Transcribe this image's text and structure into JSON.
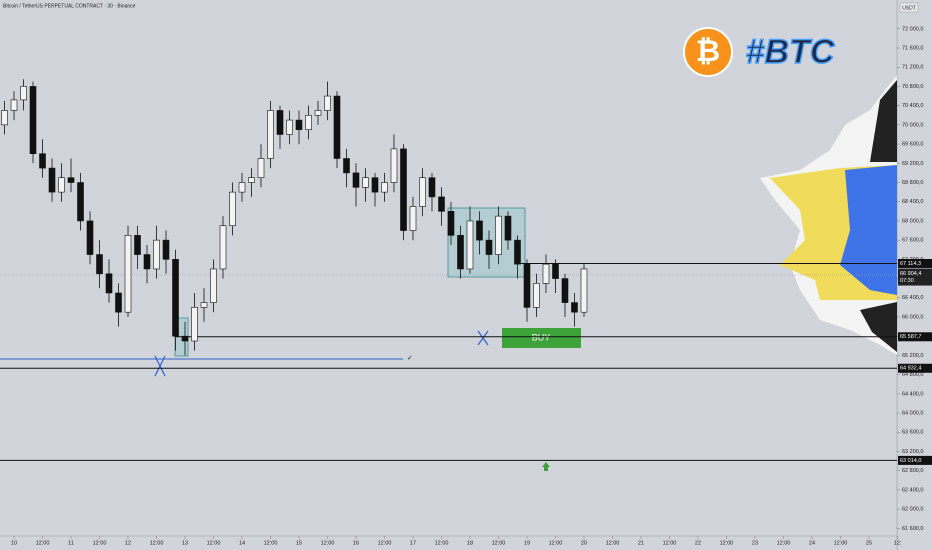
{
  "chart_data": {
    "type": "candlestick",
    "title": "Bitcoin / TetherUS PERPETUAL CONTRACT · 30 · Binance",
    "currency": "USDT",
    "logo_symbol": "₿",
    "logo_text": "#BTC",
    "buy_label": "BUY",
    "check_mark": "✓",
    "xlim": [
      -5.9,
      371.8
    ],
    "ylim": [
      61440,
      72600
    ],
    "xticks": [
      {
        "value": 0,
        "label": "10"
      },
      {
        "value": 12,
        "label": "12:00"
      },
      {
        "value": 24,
        "label": "11"
      },
      {
        "value": 36,
        "label": "12:00"
      },
      {
        "value": 48,
        "label": "12"
      },
      {
        "value": 60,
        "label": "12:00"
      },
      {
        "value": 72,
        "label": "13"
      },
      {
        "value": 84,
        "label": "12:00"
      },
      {
        "value": 96,
        "label": "14"
      },
      {
        "value": 108,
        "label": "12:00"
      },
      {
        "value": 120,
        "label": "15"
      },
      {
        "value": 132,
        "label": "12:00"
      },
      {
        "value": 144,
        "label": "16"
      },
      {
        "value": 156,
        "label": "12:00"
      },
      {
        "value": 168,
        "label": "17"
      },
      {
        "value": 180,
        "label": "12:00"
      },
      {
        "value": 192,
        "label": "18"
      },
      {
        "value": 204,
        "label": "12:00"
      },
      {
        "value": 216,
        "label": "19"
      },
      {
        "value": 228,
        "label": "12:00"
      },
      {
        "value": 240,
        "label": "20"
      },
      {
        "value": 252,
        "label": "12:00"
      },
      {
        "value": 264,
        "label": "21"
      },
      {
        "value": 276,
        "label": "12:00"
      },
      {
        "value": 288,
        "label": "22"
      },
      {
        "value": 300,
        "label": "12:00"
      },
      {
        "value": 312,
        "label": "23"
      },
      {
        "value": 324,
        "label": "12:00"
      },
      {
        "value": 336,
        "label": "24"
      },
      {
        "value": 348,
        "label": "12:00"
      },
      {
        "value": 360,
        "label": "25"
      },
      {
        "value": 372,
        "label": "12:"
      }
    ],
    "yticks": [
      {
        "value": 61600,
        "label": "61 600,0"
      },
      {
        "value": 62000,
        "label": "62 000,0"
      },
      {
        "value": 62400,
        "label": "62 400,0"
      },
      {
        "value": 62800,
        "label": "62 800,0"
      },
      {
        "value": 63200,
        "label": "63 200,0"
      },
      {
        "value": 63600,
        "label": "63 600,0"
      },
      {
        "value": 64000,
        "label": "64 000,0"
      },
      {
        "value": 64400,
        "label": "64 400,0"
      },
      {
        "value": 64800,
        "label": "64 800,0"
      },
      {
        "value": 65200,
        "label": "65 200,0"
      },
      {
        "value": 65600,
        "label": "65 600,0"
      },
      {
        "value": 66000,
        "label": "66 000,0"
      },
      {
        "value": 66400,
        "label": "66 400,0"
      },
      {
        "value": 66800,
        "label": "66 800,0"
      },
      {
        "value": 67200,
        "label": "67 200,0"
      },
      {
        "value": 67600,
        "label": "67 600,0"
      },
      {
        "value": 68000,
        "label": "68 000,0"
      },
      {
        "value": 68400,
        "label": "68 400,0"
      },
      {
        "value": 68800,
        "label": "68 800,0"
      },
      {
        "value": 69200,
        "label": "69 200,0"
      },
      {
        "value": 69600,
        "label": "69 600,0"
      },
      {
        "value": 70000,
        "label": "70 000,0"
      },
      {
        "value": 70400,
        "label": "70 400,0"
      },
      {
        "value": 70800,
        "label": "70 800,0"
      },
      {
        "value": 71200,
        "label": "71 200,0"
      },
      {
        "value": 71600,
        "label": "71 600,0"
      },
      {
        "value": 72000,
        "label": "72 000,0"
      }
    ],
    "levels": [
      {
        "value": 67114.3,
        "label": "67 114,3"
      },
      {
        "value": 65587.7,
        "label": "65 587,7"
      },
      {
        "value": 64932.4,
        "label": "64 932,4"
      },
      {
        "value": 63014.0,
        "label": "63 014,0"
      }
    ],
    "last_price": {
      "value": 66904.4,
      "label": "66 904,4",
      "countdown": "07:30"
    },
    "x": [
      -4,
      0,
      4,
      8,
      12,
      16,
      20,
      24,
      28,
      32,
      36,
      40,
      44,
      48,
      52,
      56,
      60,
      64,
      68,
      72,
      76,
      80,
      84,
      88,
      92,
      96,
      100,
      104,
      108,
      112,
      116,
      120,
      124,
      128,
      132,
      136,
      140,
      144,
      148,
      152,
      156,
      160,
      164,
      168,
      172,
      176,
      180,
      184,
      188,
      192,
      196,
      200,
      204,
      208,
      212,
      216,
      220,
      224,
      228,
      232,
      236,
      240
    ],
    "candles": [
      [
        70000,
        70500,
        69800,
        70300
      ],
      [
        70300,
        70700,
        70100,
        70520
      ],
      [
        70520,
        70950,
        70300,
        70800
      ],
      [
        70800,
        70900,
        69200,
        69400
      ],
      [
        69400,
        69700,
        68900,
        69100
      ],
      [
        69100,
        69300,
        68400,
        68600
      ],
      [
        68600,
        69200,
        68400,
        68900
      ],
      [
        68900,
        69300,
        68600,
        68800
      ],
      [
        68800,
        69000,
        67800,
        68000
      ],
      [
        68000,
        68200,
        67100,
        67300
      ],
      [
        67300,
        67600,
        66600,
        66900
      ],
      [
        66900,
        67200,
        66300,
        66500
      ],
      [
        66500,
        66700,
        65800,
        66100
      ],
      [
        66100,
        67900,
        66000,
        67700
      ],
      [
        67700,
        67900,
        67000,
        67300
      ],
      [
        67300,
        67500,
        66700,
        67000
      ],
      [
        67000,
        67900,
        66800,
        67600
      ],
      [
        67600,
        67800,
        66900,
        67200
      ],
      [
        67200,
        67400,
        65300,
        65600
      ],
      [
        65600,
        65900,
        65200,
        65500
      ],
      [
        65500,
        66500,
        65300,
        66200
      ],
      [
        66200,
        66600,
        65900,
        66300
      ],
      [
        66300,
        67200,
        66100,
        67000
      ],
      [
        67000,
        68100,
        66800,
        67900
      ],
      [
        67900,
        68800,
        67700,
        68600
      ],
      [
        68600,
        69000,
        68400,
        68800
      ],
      [
        68800,
        69100,
        68500,
        68900
      ],
      [
        68900,
        69600,
        68700,
        69300
      ],
      [
        69300,
        70500,
        69100,
        70300
      ],
      [
        70300,
        70400,
        69500,
        69800
      ],
      [
        69800,
        70300,
        69600,
        70100
      ],
      [
        70100,
        70300,
        69600,
        69900
      ],
      [
        69900,
        70400,
        69700,
        70200
      ],
      [
        70200,
        70500,
        70000,
        70300
      ],
      [
        70300,
        70900,
        70100,
        70600
      ],
      [
        70600,
        70700,
        69100,
        69300
      ],
      [
        69300,
        69500,
        68700,
        69000
      ],
      [
        69000,
        69200,
        68300,
        68700
      ],
      [
        68700,
        69100,
        68400,
        68900
      ],
      [
        68900,
        69000,
        68300,
        68600
      ],
      [
        68600,
        69000,
        68400,
        68800
      ],
      [
        68800,
        69800,
        68600,
        69500
      ],
      [
        69500,
        69600,
        67600,
        67800
      ],
      [
        67800,
        68500,
        67600,
        68300
      ],
      [
        68300,
        69100,
        68100,
        68900
      ],
      [
        68900,
        69000,
        68200,
        68500
      ],
      [
        68500,
        68700,
        67900,
        68200
      ],
      [
        68200,
        68400,
        67500,
        67700
      ],
      [
        67700,
        67900,
        66800,
        67000
      ],
      [
        67000,
        68300,
        66900,
        68000
      ],
      [
        68000,
        68200,
        67300,
        67600
      ],
      [
        67600,
        67800,
        67000,
        67300
      ],
      [
        67300,
        68300,
        67100,
        68100
      ],
      [
        68100,
        68200,
        67400,
        67600
      ],
      [
        67600,
        67700,
        66800,
        67100
      ],
      [
        67100,
        67200,
        65900,
        66200
      ],
      [
        66200,
        66900,
        66000,
        66700
      ],
      [
        66700,
        67300,
        66500,
        67100
      ],
      [
        67100,
        67200,
        66500,
        66800
      ],
      [
        66800,
        66900,
        66000,
        66300
      ],
      [
        66300,
        66500,
        65800,
        66100
      ],
      [
        66100,
        67100,
        66000,
        67000
      ]
    ]
  }
}
